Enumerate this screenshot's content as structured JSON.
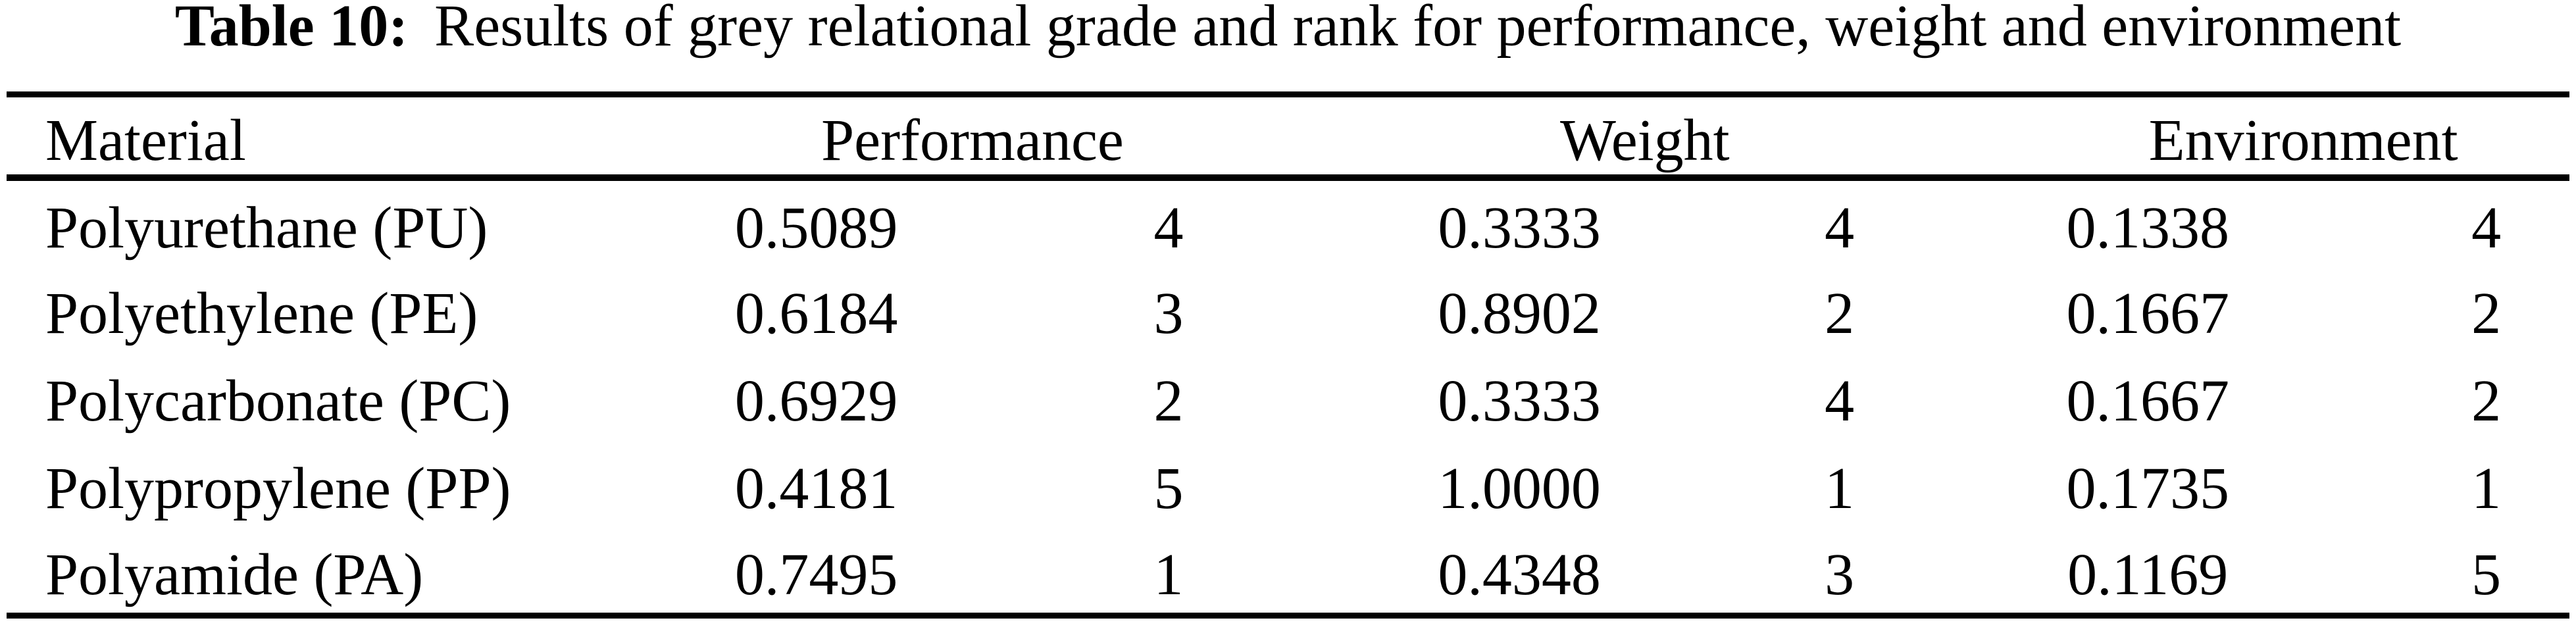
{
  "caption": {
    "label": "Table 10:",
    "text": "Results of grey relational grade and rank for performance, weight and environment"
  },
  "header": {
    "material": "Material",
    "performance": "Performance",
    "weight": "Weight",
    "environment": "Environment"
  },
  "rows": [
    {
      "material": "Polyurethane (PU)",
      "perf_grade": "0.5089",
      "perf_rank": "4",
      "weight_grade": "0.3333",
      "weight_rank": "4",
      "env_grade": "0.1338",
      "env_rank": "4"
    },
    {
      "material": "Polyethylene (PE)",
      "perf_grade": "0.6184",
      "perf_rank": "3",
      "weight_grade": "0.8902",
      "weight_rank": "2",
      "env_grade": "0.1667",
      "env_rank": "2"
    },
    {
      "material": "Polycarbonate (PC)",
      "perf_grade": "0.6929",
      "perf_rank": "2",
      "weight_grade": "0.3333",
      "weight_rank": "4",
      "env_grade": "0.1667",
      "env_rank": "2"
    },
    {
      "material": "Polypropylene (PP)",
      "perf_grade": "0.4181",
      "perf_rank": "5",
      "weight_grade": "1.0000",
      "weight_rank": "1",
      "env_grade": "0.1735",
      "env_rank": "1"
    },
    {
      "material": "Polyamide (PA)",
      "perf_grade": "0.7495",
      "perf_rank": "1",
      "weight_grade": "0.4348",
      "weight_rank": "3",
      "env_grade": "0.1169",
      "env_rank": "5"
    }
  ],
  "colors": {
    "text": "#000000",
    "background": "#ffffff",
    "rule": "#000000"
  }
}
